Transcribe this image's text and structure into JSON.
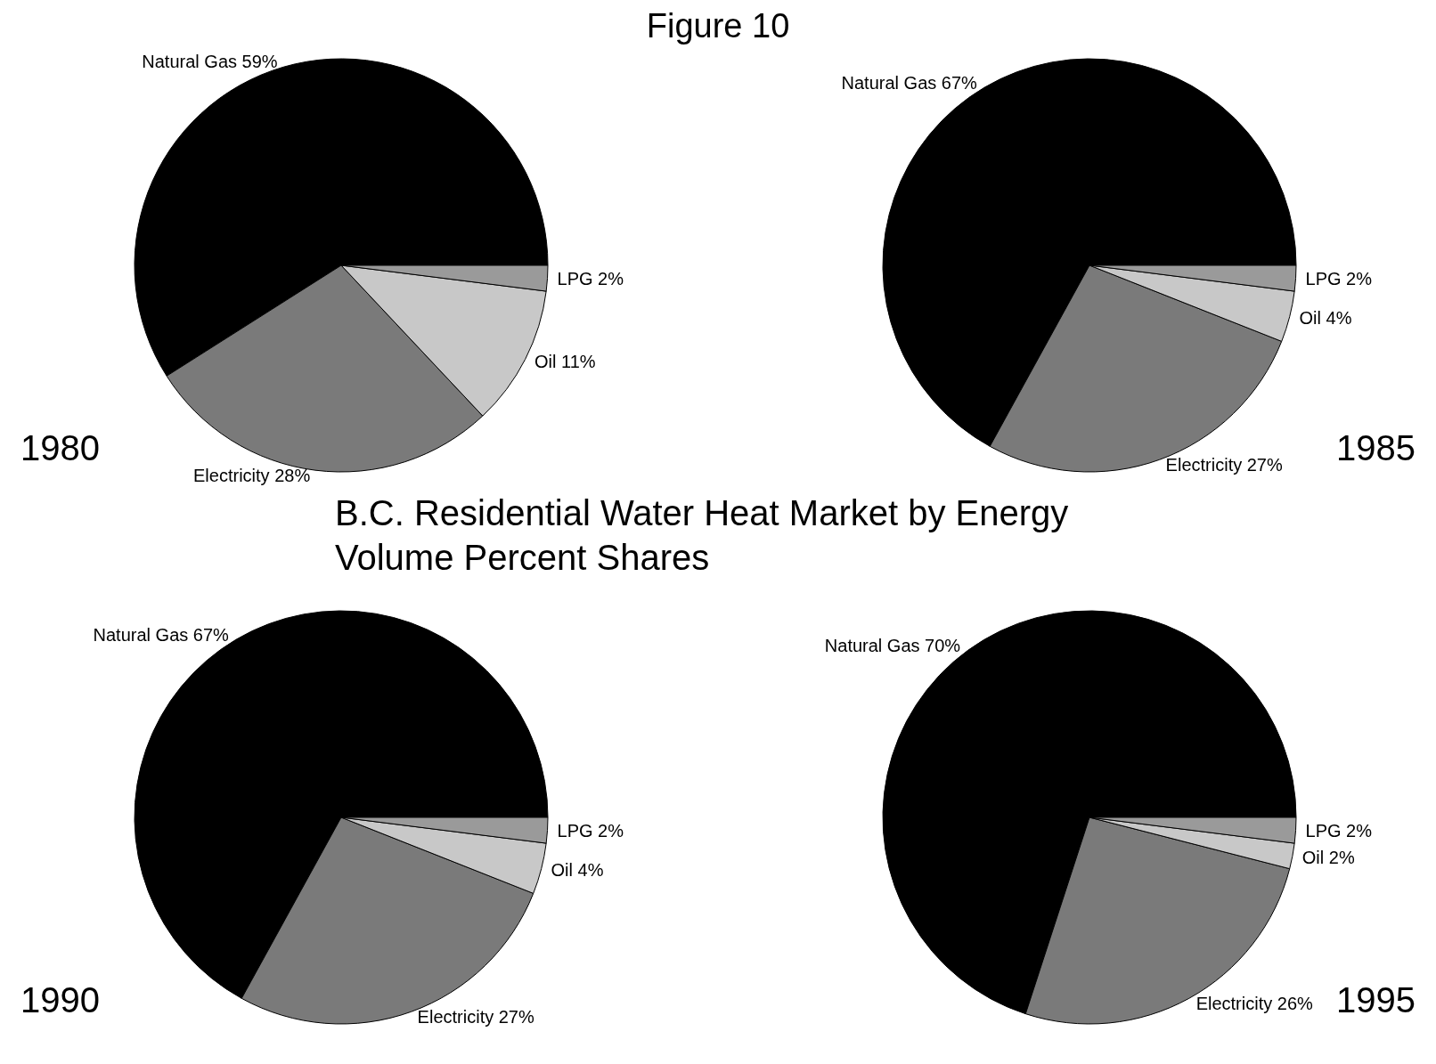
{
  "chart_data": [
    {
      "type": "other",
      "title": "B.C. Residential Water Heat Market by Energy Volume Percent Shares",
      "annotations": [
        "Figure 10"
      ]
    },
    {
      "type": "pie",
      "title": "1980",
      "categories": [
        "Natural Gas",
        "Electricity",
        "Oil",
        "LPG"
      ],
      "values": [
        59,
        28,
        11,
        2
      ],
      "value_labels": [
        "59%",
        "28%",
        "11%",
        "2%"
      ],
      "colors": [
        "#000000",
        "#7a7a7a",
        "#c8c8c8",
        "#9a9a9a"
      ]
    },
    {
      "type": "pie",
      "title": "1985",
      "categories": [
        "Natural Gas",
        "Electricity",
        "Oil",
        "LPG"
      ],
      "values": [
        67,
        27,
        4,
        2
      ],
      "value_labels": [
        "67%",
        "27%",
        "4%",
        "2%"
      ],
      "colors": [
        "#000000",
        "#7a7a7a",
        "#c8c8c8",
        "#9a9a9a"
      ]
    },
    {
      "type": "pie",
      "title": "1990",
      "categories": [
        "Natural Gas",
        "Electricity",
        "Oil",
        "LPG"
      ],
      "values": [
        67,
        27,
        4,
        2
      ],
      "value_labels": [
        "67%",
        "27%",
        "4%",
        "2%"
      ],
      "colors": [
        "#000000",
        "#7a7a7a",
        "#c8c8c8",
        "#9a9a9a"
      ]
    },
    {
      "type": "pie",
      "title": "1995",
      "categories": [
        "Natural Gas",
        "Electricity",
        "Oil",
        "LPG"
      ],
      "values": [
        70,
        26,
        2,
        2
      ],
      "value_labels": [
        "70%",
        "26%",
        "2%",
        "2%"
      ],
      "colors": [
        "#000000",
        "#7a7a7a",
        "#c8c8c8",
        "#9a9a9a"
      ]
    }
  ]
}
